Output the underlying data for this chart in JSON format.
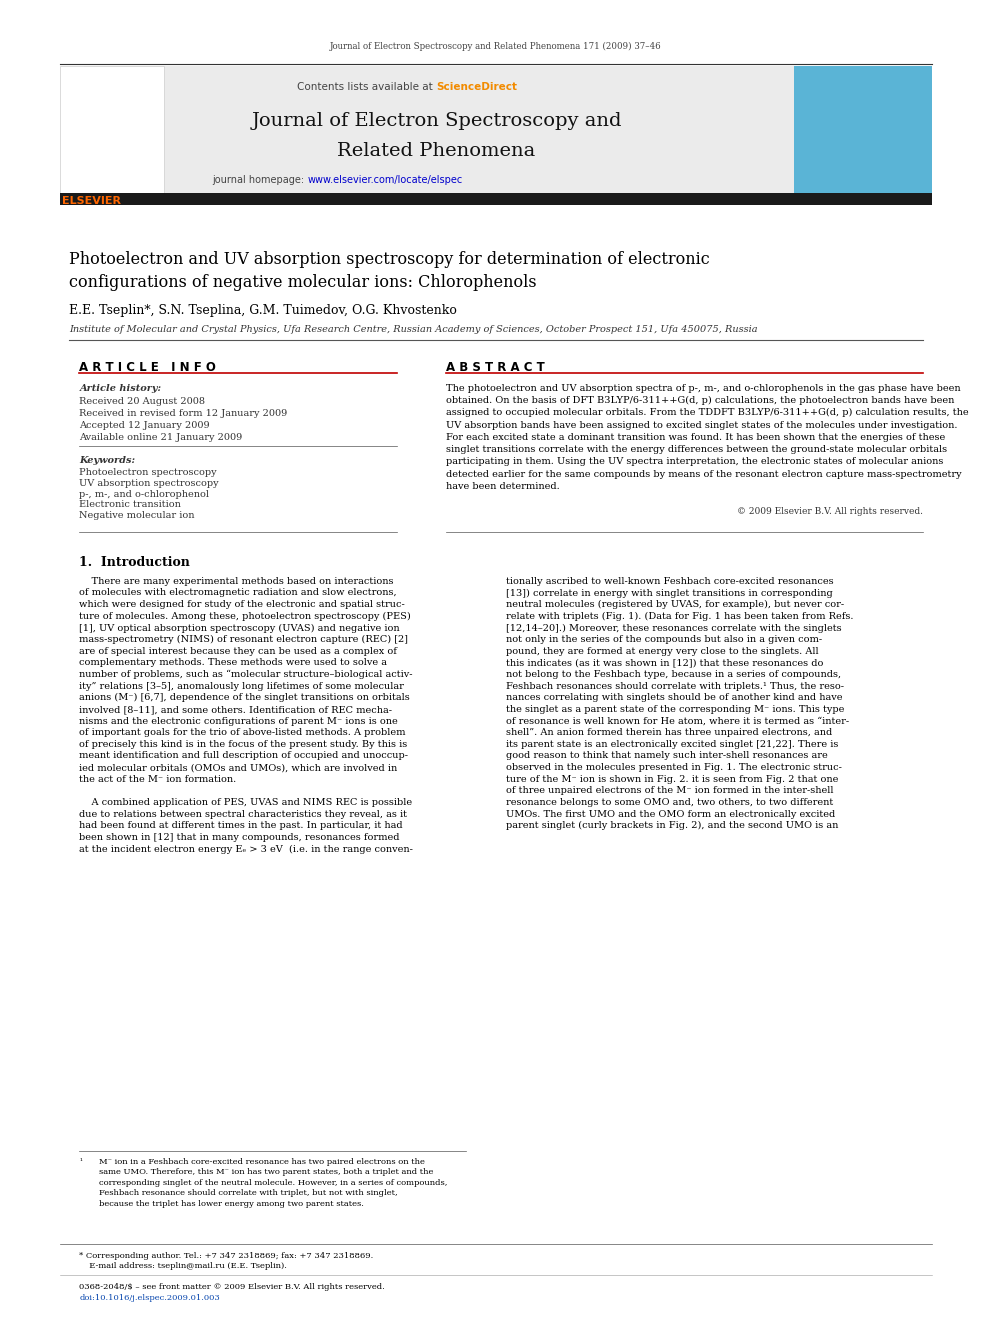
{
  "page_width": 9.92,
  "page_height": 13.23,
  "background_color": "#ffffff",
  "journal_ref_top": "Journal of Electron Spectroscopy and Related Phenomena 171 (2009) 37–46",
  "sciencedirect_color": "#f28b00",
  "journal_title_line1": "Journal of Electron Spectroscopy and",
  "journal_title_line2": "Related Phenomena",
  "homepage_color": "#0000cc",
  "paper_title_line1": "Photoelectron and UV absorption spectroscopy for determination of electronic",
  "paper_title_line2": "configurations of negative molecular ions: Chlorophenols",
  "authors": "E.E. Tseplin*, S.N. Tseplina, G.M. Tuimedov, O.G. Khvostenko",
  "affiliation": "Institute of Molecular and Crystal Physics, Ufa Research Centre, Russian Academy of Sciences, October Prospect 151, Ufa 450075, Russia",
  "article_info_header": "A R T I C L E   I N F O",
  "abstract_header": "A B S T R A C T",
  "article_history_label": "Article history:",
  "received1": "Received 20 August 2008",
  "received2": "Received in revised form 12 January 2009",
  "accepted": "Accepted 12 January 2009",
  "available": "Available online 21 January 2009",
  "keywords_label": "Keywords:",
  "keyword1": "Photoelectron spectroscopy",
  "keyword2": "UV absorption spectroscopy",
  "keyword3": "p-, m-, and o-chlorophenol",
  "keyword4": "Electronic transition",
  "keyword5": "Negative molecular ion",
  "copyright": "© 2009 Elsevier B.V. All rights reserved.",
  "section1_title": "1.  Introduction",
  "blue_link_color": "#0645ad",
  "elsevier_orange": "#ff6600",
  "abstract_lines": [
    "The photoelectron and UV absorption spectra of p-, m-, and o-chlorophenols in the gas phase have been",
    "obtained. On the basis of DFT B3LYP/6-311++G(d, p) calculations, the photoelectron bands have been",
    "assigned to occupied molecular orbitals. From the TDDFT B3LYP/6-311++G(d, p) calculation results, the",
    "UV absorption bands have been assigned to excited singlet states of the molecules under investigation.",
    "For each excited state a dominant transition was found. It has been shown that the energies of these",
    "singlet transitions correlate with the energy differences between the ground-state molecular orbitals",
    "participating in them. Using the UV spectra interpretation, the electronic states of molecular anions",
    "detected earlier for the same compounds by means of the resonant electron capture mass-spectrometry",
    "have been determined."
  ],
  "left_col_lines": [
    "    There are many experimental methods based on interactions",
    "of molecules with electromagnetic radiation and slow electrons,",
    "which were designed for study of the electronic and spatial struc-",
    "ture of molecules. Among these, photoelectron spectroscopy (PES)",
    "[1], UV optical absorption spectroscopy (UVAS) and negative ion",
    "mass-spectrometry (NIMS) of resonant electron capture (REC) [2]",
    "are of special interest because they can be used as a complex of",
    "complementary methods. These methods were used to solve a",
    "number of problems, such as “molecular structure–biological activ-",
    "ity” relations [3–5], anomalously long lifetimes of some molecular",
    "anions (M⁻) [6,7], dependence of the singlet transitions on orbitals",
    "involved [8–11], and some others. Identification of REC mecha-",
    "nisms and the electronic configurations of parent M⁻ ions is one",
    "of important goals for the trio of above-listed methods. A problem",
    "of precisely this kind is in the focus of the present study. By this is",
    "meant identification and full description of occupied and unoccup-",
    "ied molecular orbitals (OMOs and UMOs), which are involved in",
    "the act of the M⁻ ion formation.",
    "",
    "    A combined application of PES, UVAS and NIMS REC is possible",
    "due to relations between spectral characteristics they reveal, as it",
    "had been found at different times in the past. In particular, it had",
    "been shown in [12] that in many compounds, resonances formed",
    "at the incident electron energy Eₑ > 3 eV  (i.e. in the range conven-"
  ],
  "right_col_lines": [
    "tionally ascribed to well-known Feshbach core-excited resonances",
    "[13]) correlate in energy with singlet transitions in corresponding",
    "neutral molecules (registered by UVAS, for example), but never cor-",
    "relate with triplets (Fig. 1). (Data for Fig. 1 has been taken from Refs.",
    "[12,14–20].) Moreover, these resonances correlate with the singlets",
    "not only in the series of the compounds but also in a given com-",
    "pound, they are formed at energy very close to the singlets. All",
    "this indicates (as it was shown in [12]) that these resonances do",
    "not belong to the Feshbach type, because in a series of compounds,",
    "Feshbach resonances should correlate with triplets.¹ Thus, the reso-",
    "nances correlating with singlets should be of another kind and have",
    "the singlet as a parent state of the corresponding M⁻ ions. This type",
    "of resonance is well known for He atom, where it is termed as “inter-",
    "shell”. An anion formed therein has three unpaired electrons, and",
    "its parent state is an electronically excited singlet [21,22]. There is",
    "good reason to think that namely such inter-shell resonances are",
    "observed in the molecules presented in Fig. 1. The electronic struc-",
    "ture of the M⁻ ion is shown in Fig. 2. it is seen from Fig. 2 that one",
    "of three unpaired electrons of the M⁻ ion formed in the inter-shell",
    "resonance belongs to some OMO and, two others, to two different",
    "UMOs. The first UMO and the OMO form an electronically excited",
    "parent singlet (curly brackets in Fig. 2), and the second UMO is an"
  ],
  "footnote_lines": [
    "M⁻ ion in a Feshbach core-excited resonance has two paired electrons on the",
    "same UMO. Therefore, this M⁻ ion has two parent states, both a triplet and the",
    "corresponding singlet of the neutral molecule. However, in a series of compounds,",
    "Feshbach resonance should correlate with triplet, but not with singlet,",
    "because the triplet has lower energy among two parent states."
  ],
  "footer_line1": "* Corresponding author. Tel.: +7 347 2318869; fax: +7 347 2318869.",
  "footer_line2": "  E-mail address: tseplin@mail.ru (E.E. Tseplin).",
  "footer_copy": "0368-2048/$ – see front matter © 2009 Elsevier B.V. All rights reserved.",
  "footer_doi": "doi:10.1016/j.elspec.2009.01.003"
}
